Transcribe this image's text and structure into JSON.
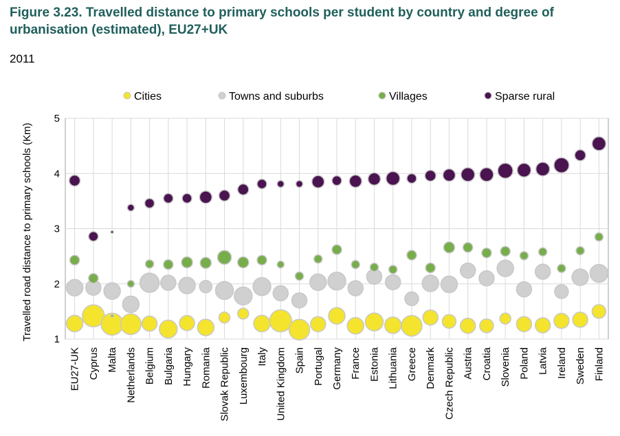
{
  "title": "Figure 3.23. Travelled distance to primary schools per student by country and degree of urbanisation (estimated), EU27+UK",
  "subtitle": "2011",
  "chart_data": {
    "type": "scatter",
    "ylabel": "Travelled road distance to primary schools (Km)",
    "xlabel": "",
    "ylim": [
      1,
      5
    ],
    "yticks": [
      1,
      2,
      3,
      4,
      5
    ],
    "grid": "vertical and horizontal",
    "legend_position": "top",
    "categories": [
      "EU27-UK",
      "Cyprus",
      "Malta",
      "Netherlands",
      "Belgium",
      "Bulgaria",
      "Hungary",
      "Romania",
      "Slovak Republic",
      "Luxembourg",
      "Italy",
      "United Kingdom",
      "Spain",
      "Portugal",
      "Germany",
      "France",
      "Estonia",
      "Lithuania",
      "Greece",
      "Denmark",
      "Czech Republic",
      "Austria",
      "Croatia",
      "Slovenia",
      "Poland",
      "Latvia",
      "Ireland",
      "Sweden",
      "Finland"
    ],
    "series": [
      {
        "name": "Cities",
        "color": "#f4e42d",
        "values": [
          1.28,
          1.42,
          1.27,
          1.27,
          1.28,
          1.18,
          1.29,
          1.21,
          1.39,
          1.46,
          1.28,
          1.33,
          1.17,
          1.27,
          1.42,
          1.24,
          1.31,
          1.25,
          1.24,
          1.39,
          1.32,
          1.24,
          1.24,
          1.37,
          1.27,
          1.25,
          1.33,
          1.35,
          1.5
        ]
      },
      {
        "name": "Towns and suburbs",
        "color": "#d0d0d0",
        "values": [
          1.93,
          1.93,
          1.87,
          1.63,
          2.02,
          2.02,
          1.97,
          1.95,
          1.88,
          1.78,
          1.95,
          1.83,
          1.7,
          2.03,
          2.05,
          1.92,
          2.13,
          2.03,
          1.73,
          2.01,
          1.99,
          2.24,
          2.1,
          2.28,
          1.9,
          2.22,
          1.86,
          2.12,
          2.19
        ]
      },
      {
        "name": "Villages",
        "color": "#77ad4b",
        "values": [
          2.43,
          2.1,
          1.42,
          2.0,
          2.36,
          2.35,
          2.39,
          2.38,
          2.48,
          2.39,
          2.43,
          2.35,
          2.14,
          2.45,
          2.62,
          2.35,
          2.3,
          2.26,
          2.52,
          2.29,
          2.66,
          2.66,
          2.56,
          2.59,
          2.51,
          2.58,
          2.28,
          2.6,
          2.85
        ]
      },
      {
        "name": "Sparse rural",
        "color": "#4a1450",
        "values": [
          3.87,
          2.86,
          2.94,
          3.38,
          3.46,
          3.55,
          3.55,
          3.57,
          3.6,
          3.71,
          3.81,
          3.81,
          3.81,
          3.85,
          3.87,
          3.86,
          3.9,
          3.91,
          3.91,
          3.96,
          3.97,
          3.98,
          3.98,
          4.05,
          4.06,
          4.08,
          4.15,
          4.33,
          4.54
        ]
      }
    ],
    "sizes": {
      "Cities": [
        12,
        16,
        16,
        15,
        11,
        13,
        11,
        12,
        8,
        8,
        12,
        16,
        15,
        11,
        12,
        12,
        13,
        12,
        15,
        11,
        10,
        11,
        10,
        8,
        11,
        11,
        11,
        11,
        10
      ],
      "Towns and suburbs": [
        12,
        11,
        12,
        12,
        14,
        11,
        12,
        9,
        13,
        13,
        13,
        11,
        11,
        12,
        13,
        11,
        11,
        11,
        10,
        12,
        12,
        11,
        11,
        12,
        11,
        11,
        10,
        12,
        13
      ],
      "Villages": [
        7,
        7,
        2,
        5,
        6,
        7,
        8,
        8,
        10,
        8,
        7,
        5,
        6,
        6,
        7,
        6,
        6,
        6,
        7,
        7,
        8,
        7,
        7,
        7,
        6,
        6,
        6,
        6,
        6
      ],
      "Sparse rural": [
        8,
        7,
        2,
        5,
        7,
        7,
        7,
        9,
        8,
        8,
        7,
        5,
        5,
        9,
        7,
        9,
        9,
        10,
        7,
        8,
        9,
        10,
        10,
        11,
        10,
        10,
        11,
        8,
        10
      ]
    }
  }
}
